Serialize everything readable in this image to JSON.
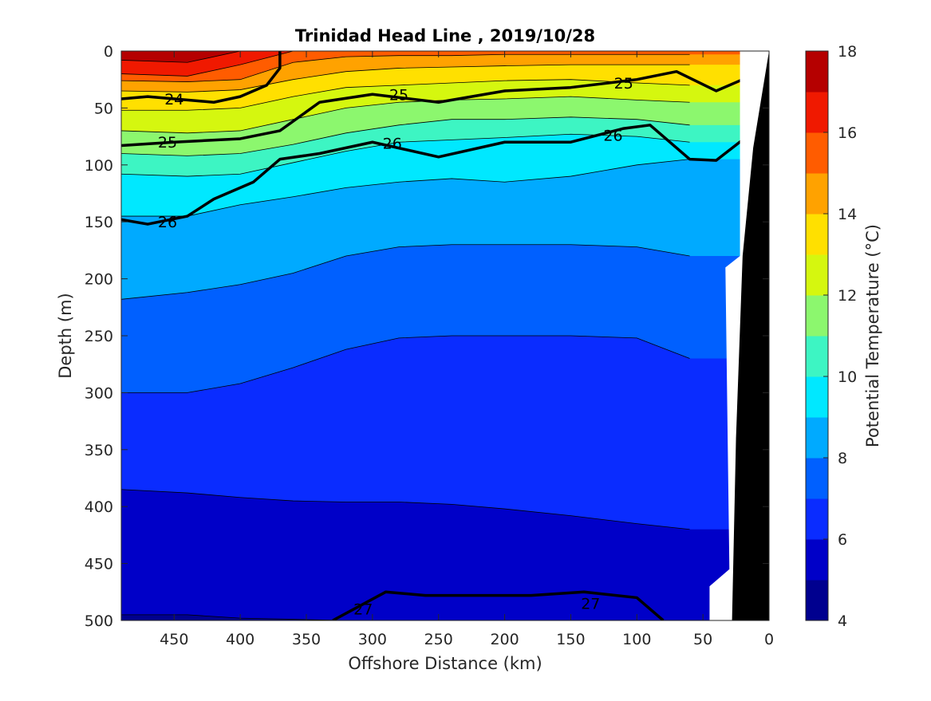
{
  "chart_data": {
    "type": "heatmap",
    "subtype": "filled-contour-section",
    "title": "Trinidad Head Line , 2019/10/28",
    "xlabel": "Offshore Distance (km)",
    "ylabel": "Depth (m)",
    "colorbar_label": "Potential Temperature (°C)",
    "xlim": [
      490,
      0
    ],
    "ylim": [
      0,
      500
    ],
    "x_reversed": true,
    "y_reversed": true,
    "clim": [
      4,
      18
    ],
    "x_ticks": [
      "450",
      "400",
      "350",
      "300",
      "250",
      "200",
      "150",
      "100",
      "50",
      "0"
    ],
    "x_tick_values": [
      450,
      400,
      350,
      300,
      250,
      200,
      150,
      100,
      50,
      0
    ],
    "y_ticks": [
      "0",
      "50",
      "100",
      "150",
      "200",
      "250",
      "300",
      "350",
      "400",
      "450",
      "500"
    ],
    "y_tick_values": [
      0,
      50,
      100,
      150,
      200,
      250,
      300,
      350,
      400,
      450,
      500
    ],
    "colorbar_ticks": [
      "4",
      "6",
      "8",
      "10",
      "12",
      "14",
      "16",
      "18"
    ],
    "colorbar_tick_values": [
      4,
      6,
      8,
      10,
      12,
      14,
      16,
      18
    ],
    "colorbar_colors": [
      "#00008f",
      "#0000c8",
      "#0a2cff",
      "#0060ff",
      "#00aaff",
      "#00e8ff",
      "#3df5c3",
      "#8cf76e",
      "#d5f70f",
      "#ffe000",
      "#ffa200",
      "#ff5c00",
      "#f01900",
      "#b50000"
    ],
    "temperature_levels": [
      {
        "temp": 5,
        "depth": [
          495,
          495,
          498,
          499,
          500,
          505,
          505,
          505,
          505,
          505,
          505
        ]
      },
      {
        "temp": 6,
        "depth": [
          385,
          388,
          392,
          395,
          396,
          396,
          398,
          402,
          408,
          415,
          420
        ]
      },
      {
        "temp": 7,
        "depth": [
          300,
          300,
          292,
          278,
          262,
          252,
          250,
          250,
          250,
          252,
          270
        ]
      },
      {
        "temp": 8,
        "depth": [
          218,
          212,
          205,
          195,
          180,
          172,
          170,
          170,
          170,
          172,
          180
        ]
      },
      {
        "temp": 9,
        "depth": [
          145,
          145,
          135,
          128,
          120,
          115,
          112,
          115,
          110,
          100,
          95
        ]
      },
      {
        "temp": 10,
        "depth": [
          108,
          110,
          108,
          98,
          88,
          80,
          78,
          76,
          73,
          75,
          80
        ]
      },
      {
        "temp": 11,
        "depth": [
          90,
          92,
          90,
          82,
          72,
          65,
          60,
          60,
          58,
          60,
          65
        ]
      },
      {
        "temp": 12,
        "depth": [
          70,
          72,
          70,
          60,
          50,
          45,
          43,
          42,
          40,
          43,
          45
        ]
      },
      {
        "temp": 13,
        "depth": [
          52,
          52,
          50,
          40,
          32,
          30,
          28,
          26,
          25,
          28,
          30
        ]
      },
      {
        "temp": 14,
        "depth": [
          35,
          36,
          34,
          25,
          18,
          15,
          14,
          13,
          12,
          12,
          12
        ]
      },
      {
        "temp": 15,
        "depth": [
          26,
          27,
          25,
          10,
          5,
          4,
          4,
          3,
          3,
          3,
          3
        ]
      },
      {
        "temp": 16,
        "depth": [
          20,
          22,
          12,
          0,
          0,
          0,
          0,
          0,
          0,
          0,
          0
        ]
      },
      {
        "temp": 17,
        "depth": [
          8,
          10,
          0,
          0,
          0,
          0,
          0,
          0,
          0,
          0,
          0
        ]
      }
    ],
    "level_x": [
      490,
      440,
      400,
      360,
      320,
      280,
      240,
      200,
      150,
      100,
      60
    ],
    "density_contours": [
      {
        "label": "24",
        "x": [
          490,
          470,
          440,
          420,
          400,
          380,
          370,
          370
        ],
        "y": [
          42,
          40,
          43,
          45,
          40,
          30,
          15,
          0
        ]
      },
      {
        "label": "25",
        "x": [
          490,
          450,
          400,
          370,
          340,
          300,
          250,
          200,
          150,
          100,
          70,
          40,
          20
        ],
        "y": [
          83,
          80,
          77,
          70,
          45,
          38,
          45,
          35,
          32,
          25,
          18,
          35,
          25
        ]
      },
      {
        "label": "26",
        "x": [
          490,
          470,
          440,
          420,
          390,
          370,
          340,
          300,
          250,
          200,
          150,
          110,
          90,
          60,
          40,
          20
        ],
        "y": [
          148,
          152,
          145,
          130,
          115,
          95,
          90,
          80,
          93,
          80,
          80,
          68,
          65,
          95,
          96,
          78
        ]
      },
      {
        "label": "27",
        "x": [
          330,
          290,
          260,
          220,
          180,
          140,
          100,
          80
        ],
        "y": [
          500,
          475,
          478,
          478,
          478,
          475,
          480,
          500
        ]
      }
    ],
    "contour_labels": [
      {
        "text": "24",
        "x": 450,
        "y": 42
      },
      {
        "text": "25",
        "x": 280,
        "y": 38
      },
      {
        "text": "25",
        "x": 110,
        "y": 28
      },
      {
        "text": "25",
        "x": 455,
        "y": 80
      },
      {
        "text": "26",
        "x": 285,
        "y": 81
      },
      {
        "text": "26",
        "x": 118,
        "y": 74
      },
      {
        "text": "26",
        "x": 455,
        "y": 150
      },
      {
        "text": "27",
        "x": 307,
        "y": 490
      },
      {
        "text": "27",
        "x": 135,
        "y": 485
      }
    ],
    "no_data_region": {
      "color": "#ffffff",
      "description": "white area left of shelf"
    },
    "bathymetry_color": "#000000"
  }
}
